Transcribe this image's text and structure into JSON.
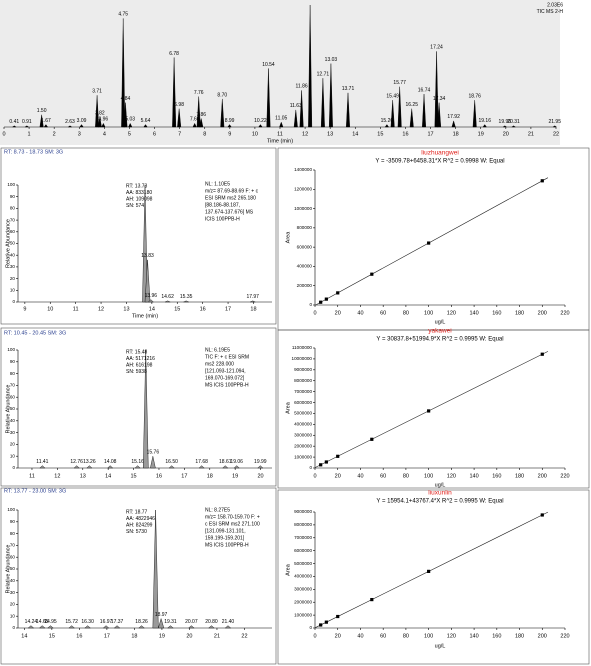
{
  "chart_data": [
    {
      "type": "chromatogram",
      "color": "#000000",
      "annotations": [
        "2.03E6",
        "TIC MS 2-H"
      ],
      "x_label": "Time (min)",
      "xlim": [
        0,
        22
      ],
      "xticks": [
        0,
        1,
        2,
        3,
        4,
        5,
        6,
        7,
        8,
        9,
        10,
        11,
        12,
        13,
        14,
        15,
        16,
        17,
        18,
        19,
        20,
        21,
        22
      ],
      "ylim": [
        0,
        100
      ],
      "peaks": {
        "x": [
          0.41,
          0.91,
          1.5,
          1.67,
          2.63,
          3.09,
          3.71,
          3.82,
          3.96,
          4.75,
          4.84,
          5.03,
          5.64,
          6.78,
          6.98,
          7.6,
          7.76,
          7.86,
          8.7,
          8.99,
          10.22,
          10.54,
          11.05,
          11.63,
          11.86,
          12.2,
          12.71,
          13.03,
          13.71,
          15.26,
          15.49,
          15.77,
          16.25,
          16.74,
          17.24,
          17.34,
          17.92,
          18.76,
          19.16,
          19.96,
          20.31,
          21.95
        ],
        "values": [
          1,
          1,
          10,
          2,
          1,
          2,
          26,
          8,
          3,
          89,
          20,
          3,
          2,
          57,
          15,
          3,
          25,
          7,
          23,
          2,
          2,
          48,
          4,
          14,
          30,
          100,
          40,
          52,
          28,
          2,
          22,
          33,
          15,
          27,
          62,
          20,
          5,
          22,
          2,
          1,
          1,
          1
        ],
        "labels": [
          "0.41",
          "0.91",
          "1.50",
          "1.67",
          "2.63",
          "3.09",
          "3.71",
          "3.82",
          "3.96",
          "4.75",
          "4.84",
          "5.03",
          "5.64",
          "6.78",
          "6.98",
          "7.60",
          "7.76",
          "7.86",
          "8.70",
          "8.99",
          "10.22",
          "10.54",
          "11.05",
          "11.63",
          "11.86",
          null,
          "12.71",
          "13.03",
          "13.71",
          "15.26",
          "15.49",
          "15.77",
          "16.25",
          "16.74",
          "17.24",
          "17.34",
          "17.92",
          "18.76",
          "19.16",
          "19.96",
          "20.31",
          "21.95"
        ]
      }
    },
    {
      "type": "chromatogram",
      "color": "#9a9a9a",
      "header": "RT: 8.73 - 18.73  SM: 3G",
      "annotations": [
        "RT: 13.73",
        "AA: 833180",
        "AH: 109098",
        "SN: 574"
      ],
      "notes": [
        "NL: 1.10E5",
        "m/z= 87.69-88.69 F: + c",
        "ESI SRM ms2 265.180",
        "[88.186-88.187,",
        "137.674-137.676]  MS",
        "ICIS 100PPB-H"
      ],
      "x_label": "Time (min)",
      "y_label": "Relative Abundance",
      "xlim": [
        8.73,
        18.73
      ],
      "xticks": [
        9,
        10,
        11,
        12,
        13,
        14,
        15,
        16,
        17,
        18
      ],
      "ylim": [
        0,
        100
      ],
      "yticks": [
        0,
        10,
        20,
        30,
        40,
        50,
        60,
        70,
        80,
        90,
        100
      ],
      "peaks": {
        "x": [
          13.73,
          13.83,
          13.96,
          14.62,
          15.35,
          17.97
        ],
        "values": [
          100,
          36,
          2,
          1,
          1,
          1
        ],
        "labels": [
          null,
          "13.83",
          "13.96",
          "14.62",
          "15.35",
          "17.97"
        ]
      }
    },
    {
      "type": "chromatogram",
      "color": "#9a9a9a",
      "header": "RT: 10.45 - 20.45  SM: 3G",
      "annotations": [
        "RT: 15.48",
        "AA: 5171216",
        "AH: 616198",
        "SN: 5938"
      ],
      "notes": [
        "NL: 6.19E5",
        "TIC F: + c ESI SRM",
        "ms2 228.000",
        "[121.093-121.094,",
        "169.070-169.072]",
        "MS ICIS 100PPB-H"
      ],
      "y_label": "Relative Abundance",
      "xlim": [
        10.45,
        20.45
      ],
      "xticks": [
        11,
        12,
        13,
        14,
        15,
        16,
        17,
        18,
        19,
        20
      ],
      "ylim": [
        0,
        100
      ],
      "yticks": [
        0,
        10,
        20,
        30,
        40,
        50,
        60,
        70,
        80,
        90,
        100
      ],
      "peaks": {
        "x": [
          11.41,
          12.76,
          13.26,
          14.08,
          15.16,
          15.48,
          15.76,
          16.5,
          17.68,
          18.61,
          19.06,
          19.99
        ],
        "values": [
          2,
          2,
          2,
          2,
          2,
          100,
          10,
          2,
          2,
          2,
          2,
          2
        ],
        "labels": [
          "11.41",
          "12.76",
          "13.26",
          "14.08",
          "15.16",
          null,
          "15.76",
          "16.50",
          "17.68",
          "18.61",
          "19.06",
          "19.99"
        ]
      }
    },
    {
      "type": "chromatogram",
      "color": "#9a9a9a",
      "header": "RT: 13.77 - 23.00  SM: 3G",
      "annotations": [
        "RT: 18.77",
        "AA: 4822946",
        "AH: 824299",
        "SN: 5730"
      ],
      "notes": [
        "NL: 8.27E5",
        "m/z= 158.70-159.70 F: +",
        "c ESI SRM ms2 271.100",
        "[131.099-131.101,",
        "159.199-159.201]",
        "MS ICIS 100PPB-H"
      ],
      "y_label": "Relative Abundance",
      "xlim": [
        13.77,
        23.0
      ],
      "xticks": [
        14,
        15,
        16,
        17,
        18,
        19,
        20,
        21,
        22
      ],
      "ylim": [
        0,
        100
      ],
      "yticks": [
        0,
        10,
        20,
        30,
        40,
        50,
        60,
        70,
        80,
        90,
        100
      ],
      "peaks": {
        "x": [
          14.24,
          14.65,
          14.95,
          15.72,
          16.3,
          16.97,
          17.37,
          18.26,
          18.77,
          18.97,
          19.31,
          20.07,
          20.8,
          21.4
        ],
        "values": [
          2,
          2,
          2,
          2,
          2,
          2,
          2,
          2,
          100,
          8,
          2,
          2,
          2,
          2
        ],
        "labels": [
          "14.24",
          "14.65",
          "14.95",
          "15.72",
          "16.30",
          "16.97",
          "17.37",
          "18.26",
          null,
          "18.97",
          "19.31",
          "20.07",
          "20.80",
          "21.40"
        ]
      }
    },
    {
      "type": "scatter",
      "color": "#000000",
      "title": "liuzhuangwei",
      "equation": "Y = -3509.78+6458.31*X   R^2 = 0.9998   W: Equal",
      "x_label": "ug/L",
      "y_label": "Area",
      "xlim": [
        0,
        220
      ],
      "xticks": [
        0,
        20,
        40,
        60,
        80,
        100,
        120,
        140,
        160,
        180,
        200,
        220
      ],
      "ylim": [
        0,
        1400000
      ],
      "yticks": [
        0,
        200000,
        400000,
        600000,
        800000,
        1000000,
        1200000,
        1400000
      ],
      "x": [
        5,
        10,
        20,
        50,
        100,
        200
      ],
      "values": [
        28800,
        61000,
        125600,
        319400,
        642300,
        1288100
      ],
      "fit_x": [
        0,
        205
      ],
      "fit_values": [
        -3510,
        1320400
      ]
    },
    {
      "type": "scatter",
      "color": "#000000",
      "title": "yakawei",
      "equation": "Y = 30837.8+51994.9*X   R^2 = 0.9995   W: Equal",
      "x_label": "ug/L",
      "y_label": "Area",
      "xlim": [
        0,
        220
      ],
      "xticks": [
        0,
        20,
        40,
        60,
        80,
        100,
        120,
        140,
        160,
        180,
        200,
        220
      ],
      "ylim": [
        0,
        11000000
      ],
      "yticks": [
        0,
        1000000,
        2000000,
        3000000,
        4000000,
        5000000,
        6000000,
        7000000,
        8000000,
        9000000,
        10000000,
        11000000
      ],
      "x": [
        5,
        10,
        20,
        50,
        100,
        200
      ],
      "values": [
        290800,
        550800,
        1070700,
        2630600,
        5230300,
        10429800
      ],
      "fit_x": [
        0,
        205
      ],
      "fit_values": [
        30800,
        10689800
      ]
    },
    {
      "type": "scatter",
      "color": "#000000",
      "title": "liuxunlin",
      "equation": "Y = 15954.1+43767.4*X   R^2 = 0.9995   W: Equal",
      "x_label": "ug/L",
      "y_label": "Area",
      "xlim": [
        0,
        220
      ],
      "xticks": [
        0,
        20,
        40,
        60,
        80,
        100,
        120,
        140,
        160,
        180,
        200,
        220
      ],
      "ylim": [
        0,
        9000000
      ],
      "yticks": [
        0,
        1000000,
        2000000,
        3000000,
        4000000,
        5000000,
        6000000,
        7000000,
        8000000,
        9000000
      ],
      "x": [
        5,
        10,
        20,
        50,
        100,
        200
      ],
      "values": [
        234800,
        453600,
        891300,
        2204300,
        4392700,
        8769400
      ],
      "fit_x": [
        0,
        205
      ],
      "fit_values": [
        16000,
        8988300
      ]
    }
  ]
}
